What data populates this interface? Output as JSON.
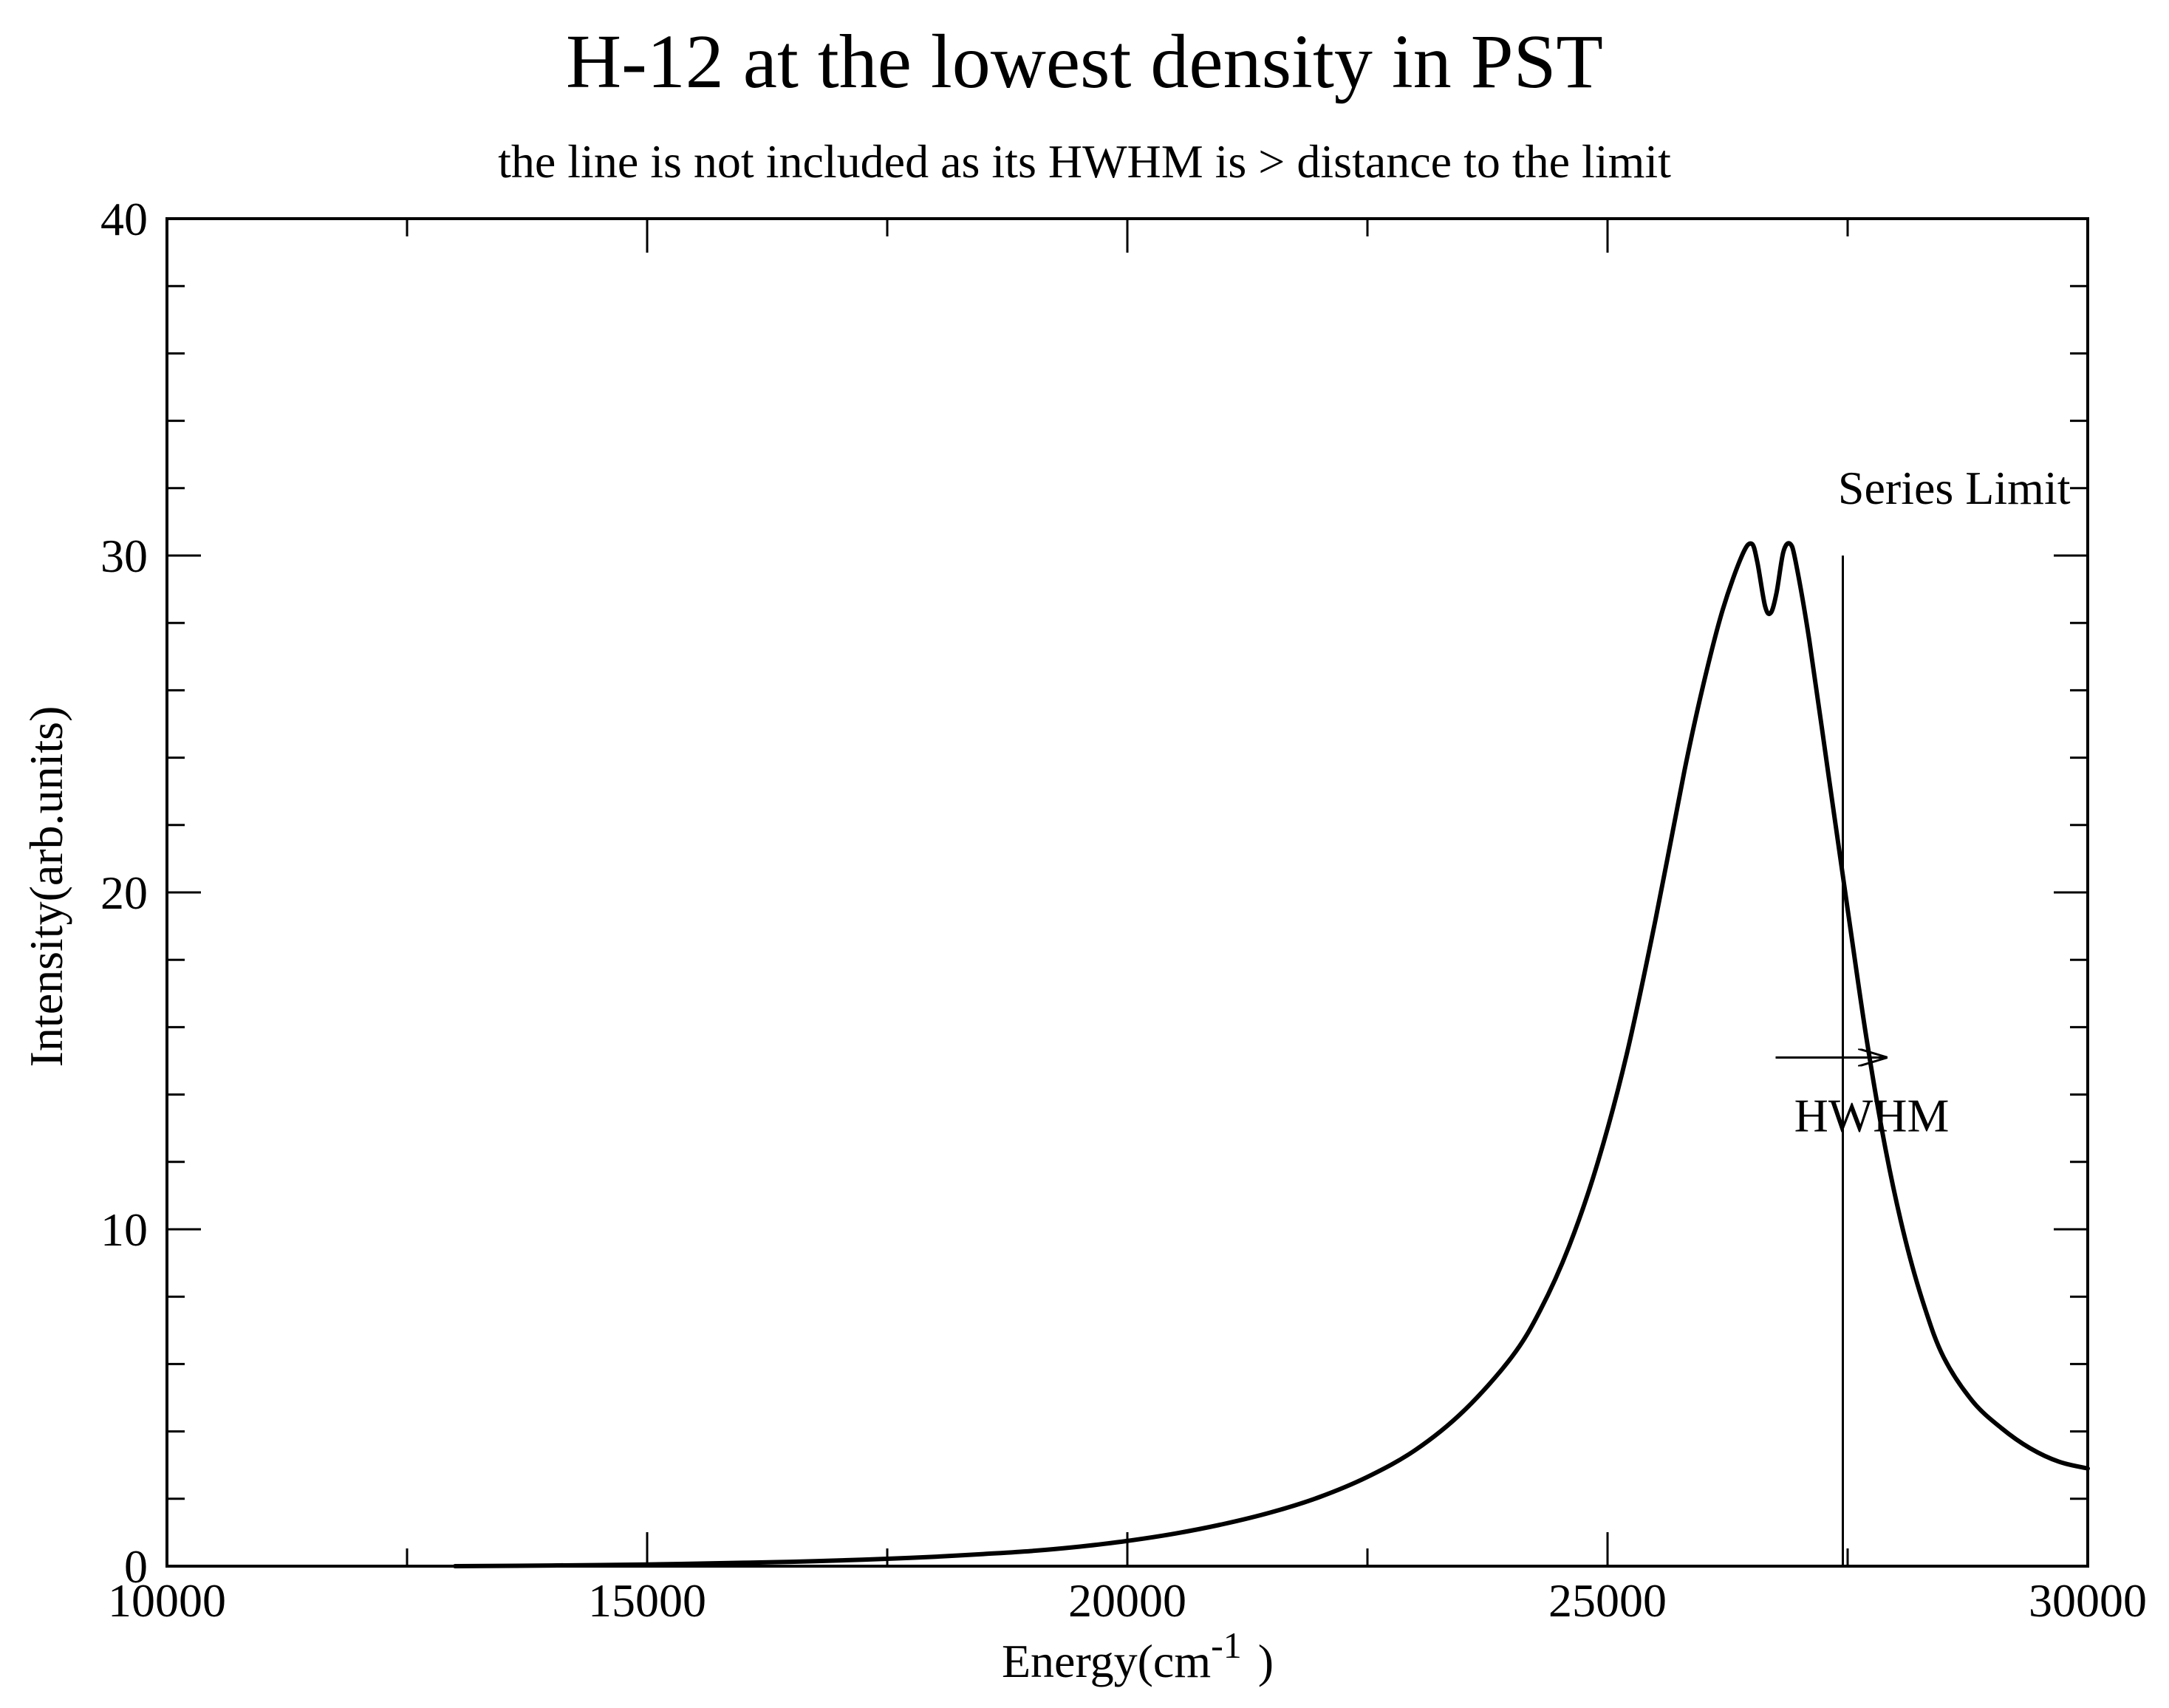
{
  "chart_data": {
    "type": "line",
    "title": "H-12 at the lowest density in PST",
    "subtitle": "the line is not included as its HWHM is > distance to the limit",
    "xlabel": "Energy(cm",
    "xlabel_superscript": "-1",
    "xlabel_suffix": ")",
    "ylabel": "Intensity(arb.units)",
    "xlim": [
      10000,
      30000
    ],
    "ylim": [
      0,
      40
    ],
    "x_major_ticks": [
      10000,
      15000,
      20000,
      25000,
      30000
    ],
    "x_tick_labels": [
      "10000",
      "15000",
      "20000",
      "25000",
      "30000"
    ],
    "x_minor_step": 2500,
    "y_major_ticks": [
      0,
      10,
      20,
      30,
      40
    ],
    "y_tick_labels": [
      "0",
      "10",
      "20",
      "30",
      "40"
    ],
    "y_minor_step": 2,
    "grid": false,
    "legend": "none",
    "series": [
      {
        "name": "H-12 profile",
        "color": "#000000",
        "x": [
          13000,
          14000,
          15000,
          16000,
          16500,
          17000,
          17500,
          18000,
          18500,
          19000,
          19500,
          20000,
          20500,
          21000,
          21500,
          22000,
          22500,
          23000,
          23500,
          24000,
          24300,
          24600,
          24900,
          25200,
          25500,
          25800,
          26000,
          26200,
          26400,
          26500,
          26560,
          26640,
          26700,
          26760,
          26830,
          26900,
          26960,
          27100,
          27300,
          27500,
          27700,
          27900,
          28100,
          28300,
          28500,
          28800,
          29100,
          29400,
          29700,
          30000
        ],
        "values": [
          0.0,
          0.02,
          0.05,
          0.1,
          0.13,
          0.17,
          0.22,
          0.28,
          0.36,
          0.45,
          0.58,
          0.75,
          0.97,
          1.25,
          1.6,
          2.05,
          2.65,
          3.45,
          4.6,
          6.2,
          7.6,
          9.5,
          12.0,
          15.2,
          19.2,
          23.6,
          26.2,
          28.4,
          30.0,
          30.35,
          29.8,
          28.5,
          28.3,
          28.9,
          30.1,
          30.35,
          29.8,
          27.5,
          23.5,
          19.5,
          15.6,
          12.3,
          9.7,
          7.7,
          6.2,
          4.9,
          4.1,
          3.5,
          3.1,
          2.9
        ]
      }
    ],
    "annotations": [
      {
        "id": "series-limit",
        "kind": "vertical-line",
        "x": 27450,
        "y_from": 0,
        "y_to": 30,
        "label": "Series Limit"
      },
      {
        "id": "hwhm",
        "kind": "arrow",
        "x_from": 26750,
        "x_to": 27900,
        "y": 15.1,
        "label": "HWHM"
      }
    ]
  }
}
